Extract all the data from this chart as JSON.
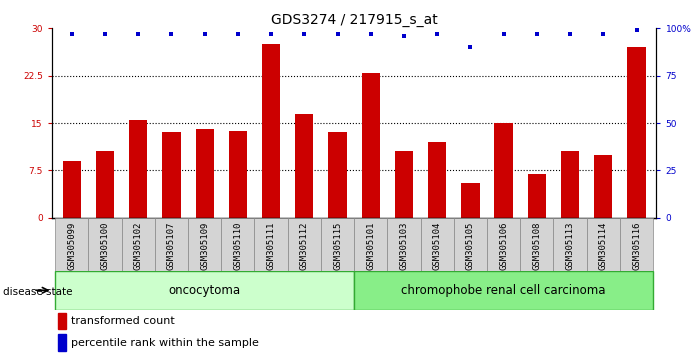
{
  "title": "GDS3274 / 217915_s_at",
  "samples": [
    "GSM305099",
    "GSM305100",
    "GSM305102",
    "GSM305107",
    "GSM305109",
    "GSM305110",
    "GSM305111",
    "GSM305112",
    "GSM305115",
    "GSM305101",
    "GSM305103",
    "GSM305104",
    "GSM305105",
    "GSM305106",
    "GSM305108",
    "GSM305113",
    "GSM305114",
    "GSM305116"
  ],
  "bar_values": [
    9.0,
    10.5,
    15.5,
    13.5,
    14.0,
    13.8,
    27.5,
    16.5,
    13.5,
    23.0,
    10.5,
    12.0,
    5.5,
    15.0,
    7.0,
    10.5,
    10.0,
    27.0
  ],
  "percentile_values": [
    97,
    97,
    97,
    97,
    97,
    97,
    97,
    97,
    97,
    97,
    96,
    97,
    90,
    97,
    97,
    97,
    97,
    99
  ],
  "bar_color": "#cc0000",
  "percentile_color": "#0000cc",
  "ylim_left": [
    0,
    30
  ],
  "ylim_right": [
    0,
    100
  ],
  "yticks_left": [
    0,
    7.5,
    15,
    22.5,
    30
  ],
  "yticks_right": [
    0,
    25,
    50,
    75,
    100
  ],
  "ytick_labels_left": [
    "0",
    "7.5",
    "15",
    "22.5",
    "30"
  ],
  "ytick_labels_right": [
    "0",
    "25",
    "50",
    "75",
    "100%"
  ],
  "group1_label": "oncocytoma",
  "group2_label": "chromophobe renal cell carcinoma",
  "group1_count": 9,
  "group2_count": 9,
  "disease_state_label": "disease state",
  "legend1": "transformed count",
  "legend2": "percentile rank within the sample",
  "group1_color": "#ccffcc",
  "group2_color": "#88ee88",
  "group_edge_color": "#33aa33",
  "tick_bg_color": "#d4d4d4",
  "tick_label_fontsize": 6.5,
  "title_fontsize": 10,
  "bar_width": 0.55
}
